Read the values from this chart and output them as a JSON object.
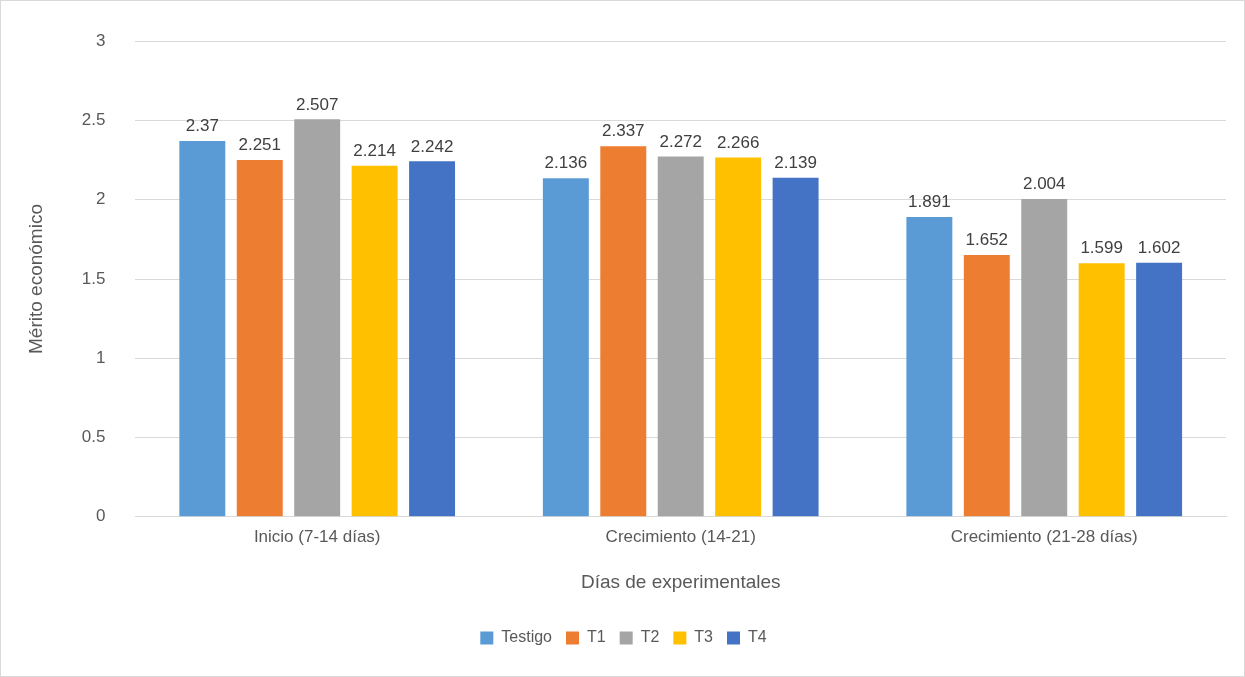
{
  "chart_data": {
    "type": "bar",
    "xlabel": "Días de experimentales",
    "ylabel": "Mérito económico",
    "categories": [
      "Inicio (7-14 días)",
      "Crecimiento (14-21)",
      "Crecimiento (21-28 días)"
    ],
    "series": [
      {
        "name": "Testigo",
        "color": "#5b9bd5",
        "values": [
          2.37,
          2.136,
          1.891
        ]
      },
      {
        "name": "T1",
        "color": "#ed7d31",
        "values": [
          2.251,
          2.337,
          1.652
        ]
      },
      {
        "name": "T2",
        "color": "#a5a5a5",
        "values": [
          2.507,
          2.272,
          2.004
        ]
      },
      {
        "name": "T3",
        "color": "#ffc000",
        "values": [
          2.214,
          2.266,
          1.599
        ]
      },
      {
        "name": "T4",
        "color": "#4472c4",
        "values": [
          2.242,
          2.139,
          1.602
        ]
      }
    ],
    "ylim": [
      0,
      3
    ],
    "yticks": [
      0,
      0.5,
      1,
      1.5,
      2,
      2.5,
      3
    ],
    "grid": "y",
    "legend": "bottom",
    "data_labels": true
  }
}
